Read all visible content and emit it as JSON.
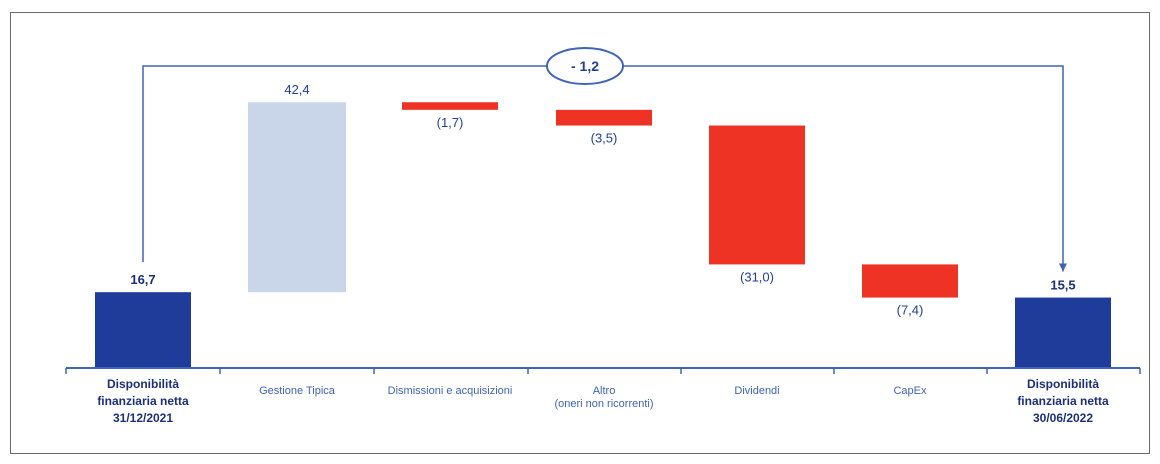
{
  "chart_data": {
    "type": "bar",
    "subtype": "waterfall",
    "categories": [
      [
        "Disponibilità",
        "finanziaria netta",
        "31/12/2021"
      ],
      [
        "Gestione Tipica"
      ],
      [
        "Dismissioni e acquisizioni"
      ],
      [
        "Altro",
        "(oneri non ricorrenti)"
      ],
      [
        "Dividendi"
      ],
      [
        "CapEx"
      ],
      [
        "Disponibilità",
        "finanziaria netta",
        "30/06/2022"
      ]
    ],
    "values": [
      16.7,
      42.4,
      -1.7,
      -3.5,
      -31.0,
      -7.4,
      15.5
    ],
    "value_labels": [
      "16,7",
      "42,4",
      "(1,7)",
      "(3,5)",
      "(31,0)",
      "(7,4)",
      "15,5"
    ],
    "kinds": [
      "total",
      "increase",
      "decrease",
      "decrease",
      "decrease",
      "decrease",
      "total"
    ],
    "net_change_label": "- 1,2",
    "colors": {
      "total": "#1f3c9a",
      "increase": "#c9d6ea",
      "decrease": "#ee3324",
      "axis": "#3f63b8",
      "connector": "#3f63b8"
    },
    "title": "",
    "xlabel": "",
    "ylabel": "",
    "ylim": [
      0,
      60
    ],
    "grid": false,
    "legend": "none"
  }
}
